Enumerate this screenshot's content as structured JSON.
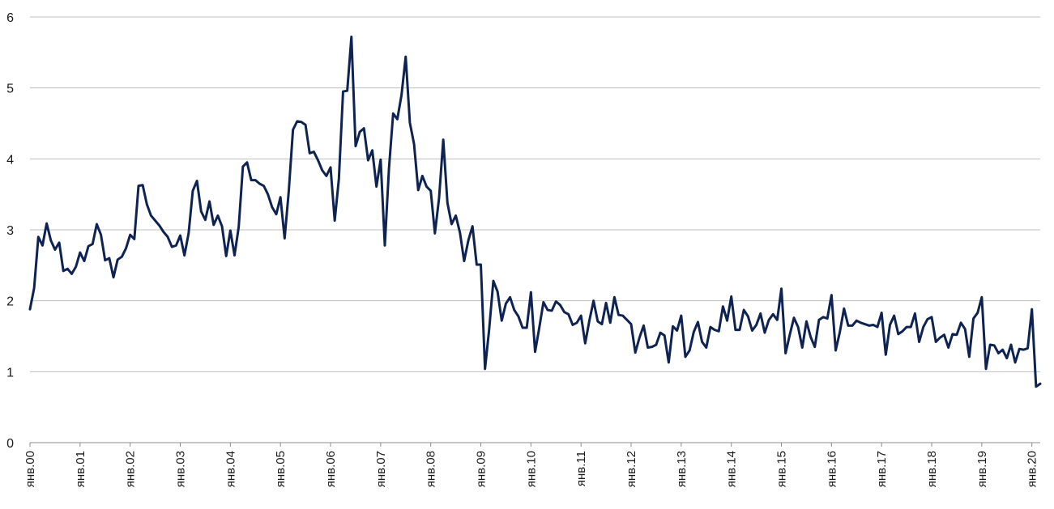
{
  "chart_data": {
    "type": "line",
    "title": "",
    "xlabel": "",
    "ylabel": "",
    "ylim": [
      0,
      6
    ],
    "yticks": [
      0,
      1,
      2,
      3,
      4,
      5,
      6
    ],
    "grid": true,
    "legend": "none",
    "x_tick_labels": [
      "янв.00",
      "янв.01",
      "янв.02",
      "янв.03",
      "янв.04",
      "янв.05",
      "янв.06",
      "янв.07",
      "янв.08",
      "янв.09",
      "янв.10",
      "янв.11",
      "янв.12",
      "янв.13",
      "янв.14",
      "янв.15",
      "янв.16",
      "янв.17",
      "янв.18",
      "янв.19",
      "янв.20"
    ],
    "x_start": "2000-01",
    "line_color": "#0f2352",
    "series": [
      {
        "values": [
          1.88,
          2.18,
          2.9,
          2.78,
          3.09,
          2.85,
          2.72,
          2.82,
          2.42,
          2.45,
          2.38,
          2.48,
          2.68,
          2.56,
          2.77,
          2.8,
          3.08,
          2.93,
          2.57,
          2.6,
          2.33,
          2.58,
          2.62,
          2.74,
          2.93,
          2.87,
          3.62,
          3.63,
          3.36,
          3.2,
          3.13,
          3.06,
          2.97,
          2.9,
          2.76,
          2.78,
          2.92,
          2.64,
          2.95,
          3.55,
          3.69,
          3.26,
          3.14,
          3.4,
          3.07,
          3.2,
          3.05,
          2.63,
          2.99,
          2.64,
          3.04,
          3.89,
          3.95,
          3.7,
          3.7,
          3.65,
          3.62,
          3.5,
          3.32,
          3.22,
          3.46,
          2.88,
          3.55,
          4.41,
          4.53,
          4.52,
          4.48,
          4.08,
          4.1,
          3.98,
          3.84,
          3.76,
          3.88,
          3.13,
          3.72,
          4.95,
          4.96,
          5.72,
          4.18,
          4.38,
          4.43,
          3.98,
          4.12,
          3.61,
          3.99,
          2.78,
          3.87,
          4.64,
          4.56,
          4.9,
          5.44,
          4.51,
          4.21,
          3.56,
          3.76,
          3.61,
          3.55,
          2.95,
          3.45,
          4.27,
          3.38,
          3.08,
          3.2,
          2.96,
          2.56,
          2.85,
          3.05,
          2.51,
          2.51,
          1.04,
          1.6,
          2.28,
          2.13,
          1.72,
          1.96,
          2.05,
          1.87,
          1.78,
          1.62,
          1.62,
          2.12,
          1.28,
          1.62,
          1.98,
          1.87,
          1.86,
          1.99,
          1.94,
          1.84,
          1.81,
          1.66,
          1.69,
          1.79,
          1.4,
          1.72,
          2.0,
          1.71,
          1.67,
          1.97,
          1.69,
          2.05,
          1.8,
          1.79,
          1.73,
          1.67,
          1.27,
          1.48,
          1.65,
          1.34,
          1.35,
          1.38,
          1.55,
          1.51,
          1.13,
          1.64,
          1.58,
          1.79,
          1.21,
          1.3,
          1.56,
          1.7,
          1.42,
          1.34,
          1.63,
          1.59,
          1.57,
          1.92,
          1.72,
          2.06,
          1.59,
          1.59,
          1.87,
          1.78,
          1.58,
          1.66,
          1.82,
          1.55,
          1.73,
          1.81,
          1.73,
          2.17,
          1.26,
          1.52,
          1.76,
          1.63,
          1.34,
          1.71,
          1.49,
          1.35,
          1.73,
          1.77,
          1.75,
          2.08,
          1.3,
          1.56,
          1.89,
          1.65,
          1.65,
          1.72,
          1.69,
          1.67,
          1.65,
          1.66,
          1.63,
          1.83,
          1.24,
          1.66,
          1.79,
          1.53,
          1.57,
          1.63,
          1.63,
          1.82,
          1.42,
          1.63,
          1.74,
          1.77,
          1.42,
          1.48,
          1.52,
          1.34,
          1.53,
          1.52,
          1.69,
          1.6,
          1.21,
          1.75,
          1.83,
          2.05,
          1.04,
          1.38,
          1.37,
          1.26,
          1.31,
          1.19,
          1.38,
          1.13,
          1.32,
          1.31,
          1.33,
          1.88,
          0.79,
          0.83
        ]
      }
    ]
  }
}
